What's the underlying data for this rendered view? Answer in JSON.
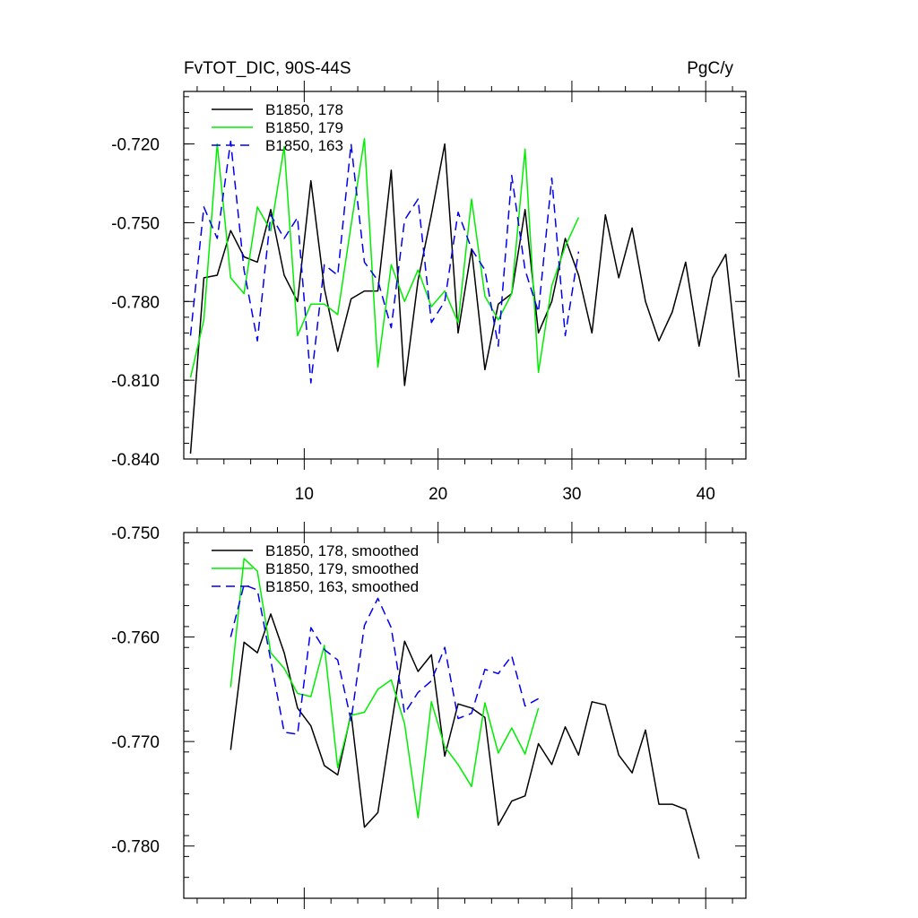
{
  "chart_data": [
    {
      "type": "line",
      "title": "FvTOT_DIC, 90S-44S",
      "units": "PgC/y",
      "xlabel": "",
      "ylabel": "",
      "xlim": [
        1,
        43
      ],
      "ylim": [
        -0.84,
        -0.7
      ],
      "xticks": [
        10,
        20,
        30,
        40
      ],
      "xtick_labels": [
        "10",
        "20",
        "30",
        "40"
      ],
      "yticks": [
        -0.72,
        -0.75,
        -0.78,
        -0.81,
        -0.84
      ],
      "ytick_labels": [
        "-0.720",
        "-0.750",
        "-0.780",
        "-0.810",
        "-0.840"
      ],
      "grid": false,
      "legend": "top-left",
      "series": [
        {
          "name": "B1850, 178",
          "color": "#000000",
          "dash": "solid",
          "x": [
            1.5,
            2.5,
            3.5,
            4.5,
            5.5,
            6.5,
            7.5,
            8.5,
            9.5,
            10.5,
            11.5,
            12.5,
            13.5,
            14.5,
            15.5,
            16.5,
            17.5,
            18.5,
            19.5,
            20.5,
            21.5,
            22.5,
            23.5,
            24.5,
            25.5,
            26.5,
            27.5,
            28.5,
            29.5,
            30.5,
            31.5,
            32.5,
            33.5,
            34.5,
            35.5,
            36.5,
            37.5,
            38.5,
            39.5,
            40.5,
            41.5,
            42.5
          ],
          "values": [
            -0.838,
            -0.771,
            -0.77,
            -0.753,
            -0.763,
            -0.765,
            -0.745,
            -0.77,
            -0.78,
            -0.734,
            -0.775,
            -0.799,
            -0.779,
            -0.776,
            -0.776,
            -0.73,
            -0.812,
            -0.772,
            -0.747,
            -0.72,
            -0.792,
            -0.76,
            -0.806,
            -0.781,
            -0.777,
            -0.745,
            -0.792,
            -0.78,
            -0.756,
            -0.77,
            -0.792,
            -0.747,
            -0.771,
            -0.752,
            -0.78,
            -0.795,
            -0.784,
            -0.765,
            -0.797,
            -0.771,
            -0.762,
            -0.809
          ]
        },
        {
          "name": "B1850, 179",
          "color": "#00ee00",
          "dash": "solid",
          "x": [
            1.5,
            2.5,
            3.5,
            4.5,
            5.5,
            6.5,
            7.5,
            8.5,
            9.5,
            10.5,
            11.5,
            12.5,
            13.5,
            14.5,
            15.5,
            16.5,
            17.5,
            18.5,
            19.5,
            20.5,
            21.5,
            22.5,
            23.5,
            24.5,
            25.5,
            26.5,
            27.5,
            28.5,
            29.5,
            30.5
          ],
          "values": [
            -0.809,
            -0.787,
            -0.72,
            -0.771,
            -0.777,
            -0.744,
            -0.753,
            -0.721,
            -0.793,
            -0.781,
            -0.781,
            -0.785,
            -0.751,
            -0.718,
            -0.805,
            -0.766,
            -0.78,
            -0.768,
            -0.782,
            -0.776,
            -0.788,
            -0.741,
            -0.778,
            -0.787,
            -0.777,
            -0.722,
            -0.807,
            -0.774,
            -0.759,
            -0.748
          ]
        },
        {
          "name": "B1850, 163",
          "color": "#0000ee",
          "dash": "dashed",
          "x": [
            1.5,
            2.5,
            3.5,
            4.5,
            5.5,
            6.5,
            7.5,
            8.5,
            9.5,
            10.5,
            11.5,
            12.5,
            13.5,
            14.5,
            15.5,
            16.5,
            17.5,
            18.5,
            19.5,
            20.5,
            21.5,
            22.5,
            23.5,
            24.5,
            25.5,
            26.5,
            27.5,
            28.5,
            29.5,
            30.5
          ],
          "values": [
            -0.793,
            -0.744,
            -0.756,
            -0.719,
            -0.768,
            -0.795,
            -0.747,
            -0.756,
            -0.748,
            -0.811,
            -0.766,
            -0.77,
            -0.72,
            -0.765,
            -0.772,
            -0.79,
            -0.749,
            -0.741,
            -0.788,
            -0.78,
            -0.746,
            -0.76,
            -0.768,
            -0.797,
            -0.732,
            -0.768,
            -0.784,
            -0.733,
            -0.793,
            -0.761
          ]
        }
      ]
    },
    {
      "type": "line",
      "title": "",
      "xlabel": "",
      "ylabel": "",
      "xlim": [
        1,
        43
      ],
      "ylim": [
        -0.785,
        -0.75
      ],
      "xticks": [
        10,
        20,
        30,
        40
      ],
      "xtick_labels": [],
      "yticks": [
        -0.75,
        -0.76,
        -0.77,
        -0.78
      ],
      "ytick_labels": [
        "-0.750",
        "-0.760",
        "-0.770",
        "-0.780"
      ],
      "grid": false,
      "legend": "top-left",
      "series": [
        {
          "name": "B1850, 178, smoothed",
          "color": "#000000",
          "dash": "solid",
          "x": [
            4.5,
            5.5,
            6.5,
            7.5,
            8.5,
            9.5,
            10.5,
            11.5,
            12.5,
            13.5,
            14.5,
            15.5,
            16.5,
            17.5,
            18.5,
            19.5,
            20.5,
            21.5,
            22.5,
            23.5,
            24.5,
            25.5,
            26.5,
            27.5,
            28.5,
            29.5,
            30.5,
            31.5,
            32.5,
            33.5,
            34.5,
            35.5,
            36.5,
            37.5,
            38.5,
            39.5
          ],
          "values": [
            -0.7708,
            -0.7605,
            -0.7615,
            -0.7578,
            -0.7615,
            -0.7668,
            -0.7685,
            -0.7723,
            -0.7732,
            -0.7673,
            -0.7782,
            -0.7768,
            -0.7685,
            -0.7604,
            -0.7633,
            -0.7617,
            -0.7714,
            -0.7664,
            -0.7668,
            -0.7677,
            -0.778,
            -0.7757,
            -0.7752,
            -0.7702,
            -0.7722,
            -0.7686,
            -0.7713,
            -0.7662,
            -0.7665,
            -0.7713,
            -0.773,
            -0.7689,
            -0.776,
            -0.776,
            -0.7765,
            -0.7812
          ]
        },
        {
          "name": "B1850, 179, smoothed",
          "color": "#00ee00",
          "dash": "solid",
          "x": [
            4.5,
            5.5,
            6.5,
            7.5,
            8.5,
            9.5,
            10.5,
            11.5,
            12.5,
            13.5,
            14.5,
            15.5,
            16.5,
            17.5,
            18.5,
            19.5,
            20.5,
            21.5,
            22.5,
            23.5,
            24.5,
            25.5,
            26.5,
            27.5
          ],
          "values": [
            -0.7648,
            -0.7525,
            -0.7537,
            -0.7615,
            -0.763,
            -0.7654,
            -0.7657,
            -0.7608,
            -0.7725,
            -0.7675,
            -0.7672,
            -0.765,
            -0.7641,
            -0.7683,
            -0.7773,
            -0.7662,
            -0.7705,
            -0.7722,
            -0.7743,
            -0.7663,
            -0.7711,
            -0.7687,
            -0.7712,
            -0.7668
          ]
        },
        {
          "name": "B1850, 163, smoothed",
          "color": "#0000ee",
          "dash": "dashed",
          "x": [
            4.5,
            5.5,
            6.5,
            7.5,
            8.5,
            9.5,
            10.5,
            11.5,
            12.5,
            13.5,
            14.5,
            15.5,
            16.5,
            17.5,
            18.5,
            19.5,
            20.5,
            21.5,
            22.5,
            23.5,
            24.5,
            25.5,
            26.5,
            27.5
          ],
          "values": [
            -0.76,
            -0.755,
            -0.7555,
            -0.7622,
            -0.7691,
            -0.7693,
            -0.7591,
            -0.7612,
            -0.7622,
            -0.768,
            -0.7589,
            -0.7563,
            -0.7591,
            -0.7673,
            -0.7653,
            -0.7642,
            -0.761,
            -0.7678,
            -0.7673,
            -0.7631,
            -0.7635,
            -0.7618,
            -0.7666,
            -0.7659
          ]
        }
      ]
    }
  ]
}
